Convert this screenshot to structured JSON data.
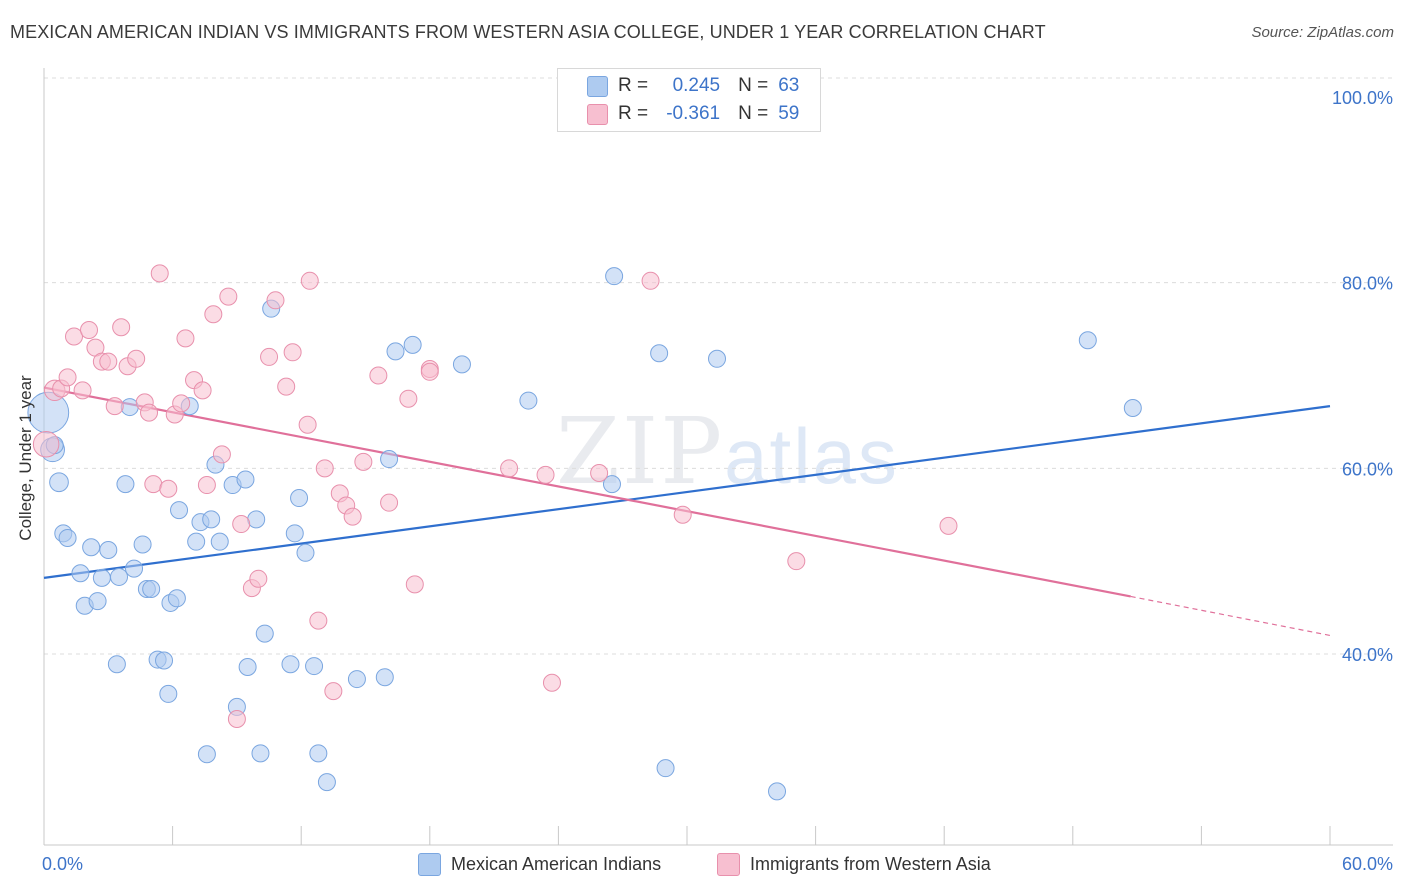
{
  "title": "MEXICAN AMERICAN INDIAN VS IMMIGRANTS FROM WESTERN ASIA COLLEGE, UNDER 1 YEAR CORRELATION CHART",
  "source": "Source: ZipAtlas.com",
  "watermark": {
    "zip": "ZIP",
    "atlas": "atlas"
  },
  "legend_top": [
    {
      "r_label": "R =",
      "r_value": "0.245",
      "n_label": "N =",
      "n_value": "63",
      "color": "#aecbf0"
    },
    {
      "r_label": "R =",
      "r_value": "-0.361",
      "n_label": "N =",
      "n_value": "59",
      "color": "#f7bfd0"
    }
  ],
  "legend_bottom": [
    {
      "label": "Mexican American Indians",
      "color": "#aecbf0"
    },
    {
      "label": "Immigrants from Western Asia",
      "color": "#f7bfd0"
    }
  ],
  "chart_data": {
    "type": "scatter",
    "title": "MEXICAN AMERICAN INDIAN VS IMMIGRANTS FROM WESTERN ASIA COLLEGE, UNDER 1 YEAR CORRELATION CHART",
    "xlabel": "",
    "ylabel": "College, Under 1 year",
    "xlim": [
      0,
      60
    ],
    "ylim": [
      20,
      102
    ],
    "x_tick_labels": [
      {
        "value": 0,
        "label": "0.0%"
      },
      {
        "value": 60,
        "label": "60.0%"
      }
    ],
    "y_tick_labels": [
      {
        "value": 100,
        "label": "100.0%"
      },
      {
        "value": 80,
        "label": "80.0%"
      },
      {
        "value": 60,
        "label": "60.0%"
      },
      {
        "value": 40,
        "label": "40.0%"
      }
    ],
    "grid": "horizontal dashed",
    "series": [
      {
        "name": "Mexican American Indians",
        "color": "#aecbf0",
        "stroke": "#7aa6e0",
        "trend": {
          "x": [
            0,
            60
          ],
          "y": [
            48.2,
            66.7
          ],
          "color": "#2f6fce"
        },
        "points": [
          [
            0.2,
            66.0,
            2.4
          ],
          [
            0.4,
            62.0,
            1.4
          ],
          [
            0.7,
            58.5,
            1.1
          ],
          [
            0.9,
            53.0,
            1
          ],
          [
            1.1,
            52.5,
            1
          ],
          [
            1.7,
            48.7,
            1
          ],
          [
            1.9,
            45.2,
            1
          ],
          [
            2.2,
            51.5,
            1
          ],
          [
            2.5,
            45.7,
            1
          ],
          [
            2.7,
            48.2,
            1
          ],
          [
            3.0,
            51.2,
            1
          ],
          [
            3.4,
            38.9,
            1
          ],
          [
            3.5,
            48.3,
            1
          ],
          [
            3.8,
            58.3,
            1
          ],
          [
            4.0,
            66.6,
            1
          ],
          [
            4.2,
            49.2,
            1
          ],
          [
            4.6,
            51.8,
            1
          ],
          [
            4.8,
            47.0,
            1
          ],
          [
            5.0,
            47.0,
            1
          ],
          [
            5.3,
            39.4,
            1
          ],
          [
            5.6,
            39.3,
            1
          ],
          [
            5.8,
            35.7,
            1
          ],
          [
            5.9,
            45.5,
            1
          ],
          [
            6.2,
            46.0,
            1
          ],
          [
            6.3,
            55.5,
            1
          ],
          [
            6.8,
            66.7,
            1
          ],
          [
            7.1,
            52.1,
            1
          ],
          [
            7.3,
            54.2,
            1
          ],
          [
            7.6,
            29.2,
            1
          ],
          [
            7.8,
            54.5,
            1
          ],
          [
            8.0,
            60.4,
            1
          ],
          [
            8.2,
            52.1,
            1
          ],
          [
            8.8,
            58.2,
            1
          ],
          [
            9.0,
            34.3,
            1
          ],
          [
            9.4,
            58.8,
            1
          ],
          [
            9.5,
            38.6,
            1
          ],
          [
            9.9,
            54.5,
            1
          ],
          [
            10.1,
            29.3,
            1
          ],
          [
            10.3,
            42.2,
            1
          ],
          [
            10.6,
            77.2,
            1
          ],
          [
            11.5,
            38.9,
            1
          ],
          [
            11.7,
            53.0,
            1
          ],
          [
            11.9,
            56.8,
            1
          ],
          [
            12.2,
            50.9,
            1
          ],
          [
            12.6,
            38.7,
            1
          ],
          [
            12.8,
            29.3,
            1
          ],
          [
            13.2,
            26.2,
            1
          ],
          [
            14.6,
            37.3,
            1
          ],
          [
            15.9,
            37.5,
            1
          ],
          [
            16.1,
            61.0,
            1
          ],
          [
            16.4,
            72.6,
            1
          ],
          [
            17.2,
            73.3,
            1
          ],
          [
            19.5,
            71.2,
            1
          ],
          [
            22.6,
            67.3,
            1
          ],
          [
            26.5,
            58.3,
            1
          ],
          [
            26.6,
            80.7,
            1
          ],
          [
            28.7,
            72.4,
            1
          ],
          [
            29.0,
            27.7,
            1
          ],
          [
            31.4,
            71.8,
            1
          ],
          [
            34.2,
            25.2,
            1
          ],
          [
            48.7,
            73.8,
            1
          ],
          [
            50.8,
            66.5,
            1
          ],
          [
            0.5,
            62.5,
            1
          ]
        ]
      },
      {
        "name": "Immigrants from Western Asia",
        "color": "#f7bfd0",
        "stroke": "#e890ac",
        "trend": {
          "x": [
            0,
            50.7
          ],
          "y": [
            68.7,
            46.2
          ],
          "color": "#e0709a",
          "dashed_to": [
            60,
            42.0
          ]
        },
        "points": [
          [
            0.1,
            62.6,
            1.5
          ],
          [
            0.5,
            68.4,
            1.2
          ],
          [
            0.8,
            68.6,
            1
          ],
          [
            1.1,
            69.8,
            1
          ],
          [
            1.4,
            74.2,
            1
          ],
          [
            1.8,
            68.4,
            1
          ],
          [
            2.1,
            74.9,
            1
          ],
          [
            2.4,
            73.0,
            1
          ],
          [
            2.7,
            71.5,
            1
          ],
          [
            3.0,
            71.5,
            1
          ],
          [
            3.3,
            66.7,
            1
          ],
          [
            3.6,
            75.2,
            1
          ],
          [
            3.9,
            71.0,
            1
          ],
          [
            4.3,
            71.8,
            1
          ],
          [
            4.7,
            67.1,
            1
          ],
          [
            4.9,
            66.0,
            1
          ],
          [
            5.1,
            58.3,
            1
          ],
          [
            5.4,
            81.0,
            1
          ],
          [
            5.8,
            57.8,
            1
          ],
          [
            6.1,
            65.8,
            1
          ],
          [
            6.4,
            67.0,
            1
          ],
          [
            6.6,
            74.0,
            1
          ],
          [
            7.0,
            69.5,
            1
          ],
          [
            7.4,
            68.4,
            1
          ],
          [
            7.6,
            58.2,
            1
          ],
          [
            7.9,
            76.6,
            1
          ],
          [
            8.3,
            61.5,
            1
          ],
          [
            8.6,
            78.5,
            1
          ],
          [
            9.0,
            33.0,
            1
          ],
          [
            9.2,
            54.0,
            1
          ],
          [
            9.7,
            47.1,
            1
          ],
          [
            10.0,
            48.1,
            1
          ],
          [
            10.5,
            72.0,
            1
          ],
          [
            10.8,
            78.1,
            1
          ],
          [
            11.3,
            68.8,
            1
          ],
          [
            11.6,
            72.5,
            1
          ],
          [
            12.3,
            64.7,
            1
          ],
          [
            12.4,
            80.2,
            1
          ],
          [
            12.8,
            43.6,
            1
          ],
          [
            13.1,
            60.0,
            1
          ],
          [
            13.5,
            36.0,
            1
          ],
          [
            13.8,
            57.3,
            1
          ],
          [
            14.1,
            56.0,
            1
          ],
          [
            14.4,
            54.8,
            1
          ],
          [
            14.9,
            60.7,
            1
          ],
          [
            15.6,
            70.0,
            1
          ],
          [
            16.1,
            56.3,
            1
          ],
          [
            17.0,
            67.5,
            1
          ],
          [
            17.3,
            47.5,
            1
          ],
          [
            18.0,
            70.7,
            1
          ],
          [
            18.0,
            70.4,
            1
          ],
          [
            21.7,
            60.0,
            1
          ],
          [
            23.4,
            59.3,
            1
          ],
          [
            23.7,
            36.9,
            1
          ],
          [
            25.9,
            59.5,
            1
          ],
          [
            28.3,
            80.2,
            1
          ],
          [
            29.8,
            55.0,
            1
          ],
          [
            35.1,
            50.0,
            1
          ],
          [
            42.2,
            53.8,
            1
          ]
        ]
      }
    ]
  }
}
